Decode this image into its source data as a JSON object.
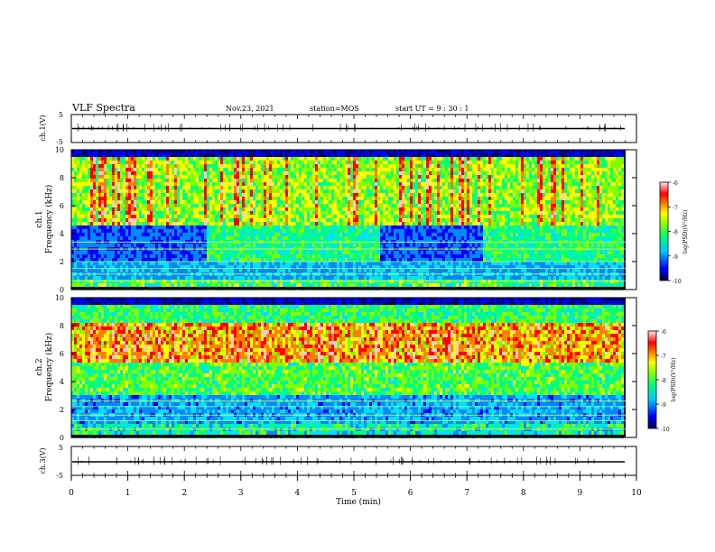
{
  "header": {
    "title": "VLF Spectra",
    "date": "Nov.23, 2021",
    "station": "station=MOS",
    "start": "start  UT  =   9 : 30 : 1"
  },
  "chart_data": [
    {
      "type": "line",
      "panel": "ch1-waveform",
      "ylabel": "ch.1(V)",
      "ylim": [
        -5,
        5
      ],
      "yticks": [
        "5",
        "-5"
      ],
      "xlim": [
        0,
        10
      ],
      "series": [
        {
          "values_note_level": 0
        }
      ]
    },
    {
      "type": "heatmap",
      "panel": "ch1-spectrogram",
      "ylabel_line1": "ch.1",
      "ylabel_line2": "Frequency (kHz)",
      "ylim": [
        0,
        10
      ],
      "yticks": [
        "0",
        "2",
        "4",
        "6",
        "8",
        "10"
      ],
      "xlim": [
        0,
        9.85
      ],
      "colorbar": {
        "label": "log(PSD)(V²/Hz)",
        "range": [
          -10,
          -6
        ],
        "ticks": [
          "-6",
          "-7",
          "-8",
          "-9",
          "-10"
        ]
      }
    },
    {
      "type": "heatmap",
      "panel": "ch2-spectrogram",
      "ylabel_line1": "ch.2",
      "ylabel_line2": "Frequency (kHz)",
      "ylim": [
        0,
        10
      ],
      "yticks": [
        "0",
        "2",
        "4",
        "6",
        "8",
        "10"
      ],
      "xlim": [
        0,
        9.85
      ],
      "colorbar": {
        "label": "log(PSD)(V²/Hz)",
        "range": [
          -10,
          -6
        ],
        "ticks": [
          "-6",
          "-7",
          "-8",
          "-9",
          "-10"
        ]
      }
    },
    {
      "type": "line",
      "panel": "ch3-waveform",
      "ylabel": "ch.3(V)",
      "ylim": [
        -5,
        5
      ],
      "yticks": [
        "5",
        "-5"
      ],
      "xlim": [
        0,
        10
      ],
      "series": [
        {
          "values_note_level": 0
        }
      ]
    }
  ],
  "xaxis": {
    "label": "Time  (min)",
    "ticks": [
      "0",
      "1",
      "2",
      "3",
      "4",
      "5",
      "6",
      "7",
      "8",
      "9",
      "10"
    ]
  },
  "colors": {
    "scale": [
      "#00007a",
      "#0000ff",
      "#0088ff",
      "#00e0ff",
      "#00ff80",
      "#80ff00",
      "#ffff00",
      "#ff8000",
      "#ff0000",
      "#ffc8c8",
      "#ffffff"
    ]
  }
}
